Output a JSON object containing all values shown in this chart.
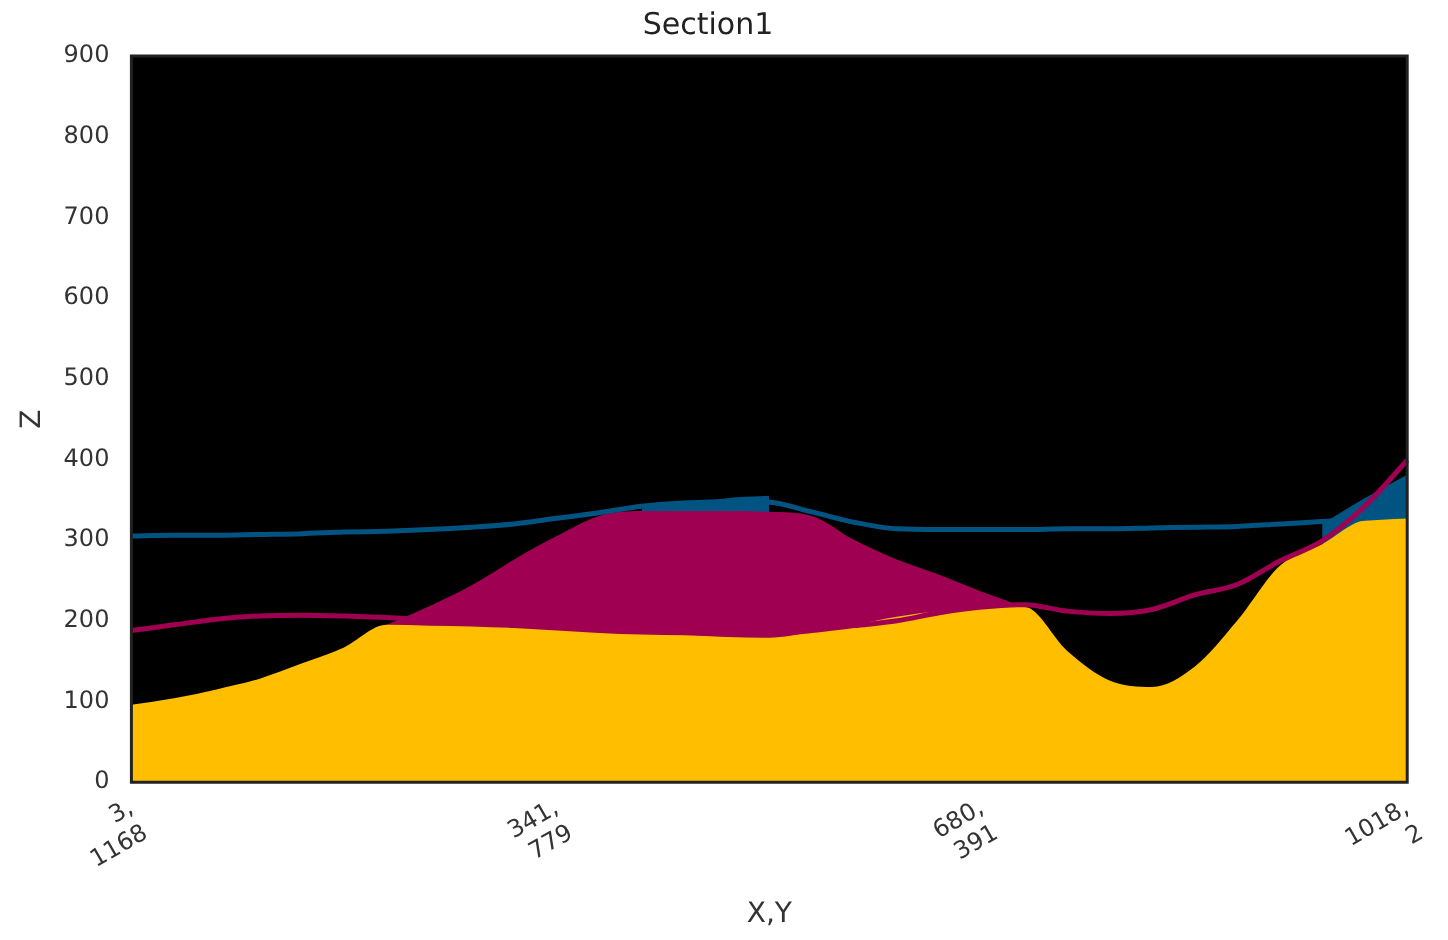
{
  "chart_data": {
    "type": "area",
    "title": "Section1",
    "xlabel": "X,Y",
    "ylabel": "Z",
    "categories": [
      "3,\n1168",
      null,
      null,
      null,
      null,
      null,
      null,
      null,
      null,
      null,
      "341,\n779",
      null,
      null,
      null,
      null,
      null,
      null,
      null,
      null,
      null,
      "680,\n391",
      null,
      null,
      null,
      null,
      null,
      null,
      null,
      null,
      null,
      "1018,\n2"
    ],
    "ylim": [
      0,
      900
    ],
    "yticks": [
      0,
      100,
      200,
      300,
      400,
      500,
      600,
      700,
      800,
      900
    ],
    "grid": false,
    "legend": false,
    "bands": [
      {
        "axis": "y",
        "from": 0,
        "to": 900,
        "color": "#000000"
      }
    ],
    "series": [
      {
        "color": "#015482",
        "values": [
          null,
          null,
          null,
          null,
          null,
          null,
          null,
          null,
          null,
          null,
          null,
          null,
          340,
          344,
          352,
          355,
          null,
          null,
          null,
          null,
          null,
          null,
          null,
          null,
          null,
          null,
          null,
          null,
          320,
          352,
          381
        ]
      },
      {
        "color": "#9f0052",
        "values": [
          null,
          null,
          null,
          null,
          null,
          null,
          195,
          218,
          244,
          276,
          305,
          330,
          336,
          336,
          336,
          335,
          330,
          300,
          276,
          257,
          236,
          217,
          null,
          null,
          null,
          null,
          null,
          null,
          null,
          null,
          null
        ]
      },
      {
        "color": "#ffbe00",
        "values": [
          96,
          104,
          115,
          128,
          147,
          167,
          195,
          194,
          193,
          191,
          188,
          185,
          183,
          182,
          180,
          179,
          186,
          195,
          205,
          212,
          216,
          217,
          163,
          126,
          118,
          143,
          200,
          268,
          295,
          325,
          328
        ]
      },
      {
        "type": "line",
        "color": "#015482",
        "values": [
          305,
          306,
          306,
          307,
          308,
          310,
          311,
          313,
          316,
          320,
          327,
          334,
          342,
          346,
          348,
          347,
          335,
          322,
          314,
          313,
          313,
          313,
          314,
          314,
          315,
          316,
          317,
          320,
          323,
          327,
          330
        ]
      },
      {
        "type": "line",
        "color": "#9f0052",
        "values": [
          188,
          195,
          202,
          206,
          207,
          206,
          204,
          201,
          198,
          196,
          193,
          190,
          188,
          186,
          184,
          184,
          188,
          194,
          200,
          210,
          217,
          220,
          212,
          209,
          214,
          232,
          245,
          274,
          299,
          342,
          399
        ]
      }
    ]
  }
}
